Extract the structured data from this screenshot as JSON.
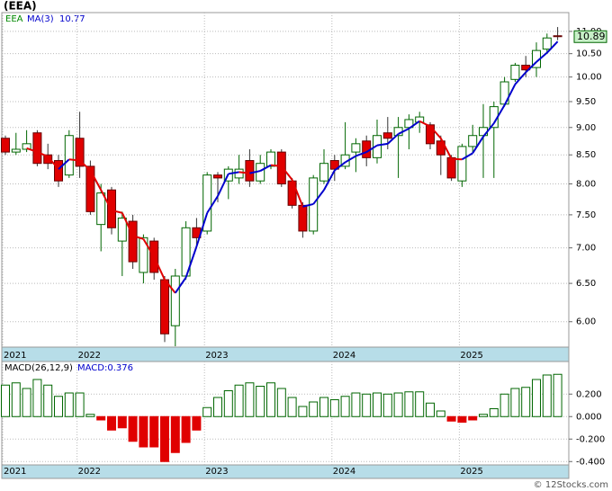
{
  "chart_data": [
    {
      "type": "candlestick",
      "title": "(EEA)",
      "legend_symbol": "EEA",
      "categories": [
        "2021",
        null,
        null,
        null,
        null,
        null,
        null,
        "2022",
        null,
        null,
        null,
        null,
        null,
        null,
        null,
        null,
        null,
        null,
        null,
        "2023",
        null,
        null,
        null,
        null,
        null,
        null,
        null,
        null,
        null,
        null,
        null,
        "2024",
        null,
        null,
        null,
        null,
        null,
        null,
        null,
        null,
        null,
        null,
        null,
        "2025",
        null,
        null,
        null,
        null,
        null,
        null,
        null,
        null,
        null
      ],
      "open": [
        8.8,
        8.55,
        8.6,
        8.9,
        8.5,
        8.4,
        8.15,
        8.8,
        8.3,
        7.35,
        7.9,
        7.1,
        7.4,
        6.65,
        7.1,
        6.55,
        5.95,
        6.6,
        7.3,
        7.25,
        8.15,
        8.05,
        8.1,
        8.4,
        8.05,
        8.3,
        8.55,
        8.05,
        7.65,
        7.25,
        8.05,
        8.4,
        8.3,
        8.55,
        8.75,
        8.45,
        8.9,
        8.85,
        9.0,
        9.1,
        9.05,
        8.75,
        8.45,
        8.05,
        8.65,
        8.85,
        9.0,
        9.45,
        9.95,
        10.25,
        10.2,
        10.6,
        10.9
      ],
      "high": [
        8.85,
        8.9,
        8.95,
        8.95,
        8.7,
        8.5,
        8.95,
        9.3,
        8.4,
        8.0,
        7.95,
        7.55,
        7.5,
        7.2,
        7.15,
        6.6,
        6.7,
        7.4,
        7.45,
        8.2,
        8.2,
        8.3,
        8.5,
        8.6,
        8.5,
        8.6,
        8.6,
        8.1,
        7.7,
        8.15,
        8.6,
        8.5,
        9.1,
        8.8,
        8.85,
        9.15,
        9.2,
        9.2,
        9.25,
        9.3,
        9.1,
        8.85,
        8.5,
        8.7,
        9.05,
        9.45,
        9.5,
        10.0,
        10.3,
        10.45,
        10.75,
        10.95,
        11.1
      ],
      "low": [
        8.5,
        8.5,
        8.55,
        8.3,
        8.25,
        7.95,
        8.1,
        8.1,
        7.5,
        6.95,
        7.2,
        6.6,
        6.7,
        6.5,
        6.55,
        5.75,
        5.7,
        6.55,
        7.0,
        7.2,
        7.7,
        7.75,
        8.0,
        7.95,
        8.0,
        8.25,
        7.95,
        7.6,
        7.15,
        7.2,
        8.0,
        8.05,
        8.25,
        8.2,
        8.3,
        8.35,
        8.6,
        8.1,
        8.6,
        8.9,
        8.6,
        8.15,
        8.05,
        7.95,
        8.55,
        8.1,
        8.1,
        9.4,
        9.9,
        10.0,
        10.0,
        10.5,
        10.8
      ],
      "close": [
        8.55,
        8.6,
        8.7,
        8.35,
        8.35,
        8.05,
        8.85,
        8.3,
        7.55,
        7.85,
        7.3,
        7.45,
        6.8,
        7.15,
        6.65,
        5.85,
        6.6,
        7.3,
        7.15,
        8.15,
        8.1,
        8.25,
        8.25,
        8.05,
        8.35,
        8.55,
        8.0,
        7.65,
        7.25,
        8.1,
        8.35,
        8.25,
        8.5,
        8.7,
        8.45,
        8.85,
        8.8,
        9.0,
        9.15,
        9.2,
        8.7,
        8.5,
        8.1,
        8.65,
        8.85,
        9.0,
        9.4,
        9.9,
        10.25,
        10.15,
        10.57,
        10.85,
        10.89
      ],
      "up_color": "#ffffff",
      "down_color": "#e00000",
      "body_stroke": "#006600",
      "ma": {
        "name": "MA(3)",
        "last": 10.77,
        "up_color": "#0000cc",
        "down_color": "#e00000",
        "values": [
          null,
          null,
          8.62,
          8.55,
          8.47,
          8.25,
          8.42,
          8.4,
          8.23,
          7.9,
          7.57,
          7.53,
          7.18,
          7.13,
          6.87,
          6.55,
          6.37,
          6.58,
          7.02,
          7.53,
          7.8,
          8.17,
          8.2,
          8.18,
          8.22,
          8.32,
          8.3,
          8.07,
          7.63,
          7.67,
          7.9,
          8.23,
          8.37,
          8.48,
          8.55,
          8.67,
          8.7,
          8.88,
          8.98,
          9.12,
          9.02,
          8.8,
          8.43,
          8.42,
          8.53,
          8.83,
          9.08,
          9.43,
          9.85,
          10.1,
          10.32,
          10.52,
          10.77
        ]
      },
      "log_scale": true,
      "ylim": [
        5.69,
        11.44
      ],
      "yticks": [
        {
          "value": 6,
          "label": "6.00"
        },
        {
          "value": 6.5,
          "label": "6.50"
        },
        {
          "value": 7,
          "label": "7.00"
        },
        {
          "value": 7.5,
          "label": "7.50"
        },
        {
          "value": 8,
          "label": "8.00"
        },
        {
          "value": 8.5,
          "label": "8.50"
        },
        {
          "value": 9,
          "label": "9.00"
        },
        {
          "value": 9.5,
          "label": "9.50"
        },
        {
          "value": 10,
          "label": "10.00"
        },
        {
          "value": 10.5,
          "label": "10.50"
        },
        {
          "value": 11,
          "label": "11.00"
        }
      ],
      "grid": true
    },
    {
      "type": "bar",
      "title": "MACD(26,12,9)",
      "value_text": "MACD:0.376",
      "categories": [
        "2021",
        null,
        null,
        null,
        null,
        null,
        null,
        "2022",
        null,
        null,
        null,
        null,
        null,
        null,
        null,
        null,
        null,
        null,
        null,
        "2023",
        null,
        null,
        null,
        null,
        null,
        null,
        null,
        null,
        null,
        null,
        null,
        "2024",
        null,
        null,
        null,
        null,
        null,
        null,
        null,
        null,
        null,
        null,
        null,
        "2025",
        null,
        null,
        null,
        null,
        null,
        null,
        null,
        null,
        null
      ],
      "values": [
        0.28,
        0.3,
        0.25,
        0.33,
        0.28,
        0.18,
        0.21,
        0.21,
        0.02,
        -0.03,
        -0.12,
        -0.1,
        -0.22,
        -0.27,
        -0.27,
        -0.4,
        -0.32,
        -0.23,
        -0.12,
        0.08,
        0.17,
        0.23,
        0.28,
        0.3,
        0.27,
        0.3,
        0.25,
        0.17,
        0.09,
        0.13,
        0.17,
        0.15,
        0.18,
        0.21,
        0.2,
        0.21,
        0.2,
        0.21,
        0.22,
        0.22,
        0.12,
        0.05,
        -0.04,
        -0.05,
        -0.03,
        0.02,
        0.07,
        0.2,
        0.25,
        0.26,
        0.33,
        0.37,
        0.376
      ],
      "pos_color": "#006600",
      "neg_color": "#e00000",
      "ylim": [
        -0.43,
        0.49
      ],
      "yticks": [
        {
          "value": -0.4,
          "label": "-0.400"
        },
        {
          "value": -0.2,
          "label": "-0.200"
        },
        {
          "value": 0,
          "label": "0.000"
        },
        {
          "value": 0.2,
          "label": "0.200"
        }
      ],
      "grid": true
    }
  ],
  "footer": "© 12Stocks.com"
}
